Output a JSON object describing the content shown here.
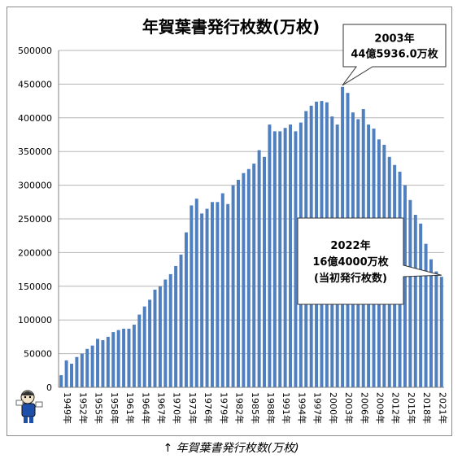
{
  "chart_data": {
    "type": "bar",
    "title": "年賀葉書発行枚数(万枚)",
    "unit": "万枚",
    "ylim": [
      0,
      500000
    ],
    "ytick_step": 50000,
    "grid": true,
    "bar_color": "#4f7fbf",
    "categories": [
      "1949年",
      "1950年",
      "1951年",
      "1952年",
      "1953年",
      "1954年",
      "1955年",
      "1956年",
      "1957年",
      "1958年",
      "1959年",
      "1960年",
      "1961年",
      "1962年",
      "1963年",
      "1964年",
      "1965年",
      "1966年",
      "1967年",
      "1968年",
      "1969年",
      "1970年",
      "1971年",
      "1972年",
      "1973年",
      "1974年",
      "1975年",
      "1976年",
      "1977年",
      "1978年",
      "1979年",
      "1980年",
      "1981年",
      "1982年",
      "1983年",
      "1984年",
      "1985年",
      "1986年",
      "1987年",
      "1988年",
      "1989年",
      "1990年",
      "1991年",
      "1992年",
      "1993年",
      "1994年",
      "1995年",
      "1996年",
      "1997年",
      "1998年",
      "1999年",
      "2000年",
      "2001年",
      "2002年",
      "2003年",
      "2004年",
      "2005年",
      "2006年",
      "2007年",
      "2008年",
      "2009年",
      "2010年",
      "2011年",
      "2012年",
      "2013年",
      "2014年",
      "2015年",
      "2016年",
      "2017年",
      "2018年",
      "2019年",
      "2020年",
      "2021年",
      "2022年"
    ],
    "visible_tick_labels": [
      "1949年",
      "1952年",
      "1955年",
      "1958年",
      "1961年",
      "1964年",
      "1967年",
      "1970年",
      "1973年",
      "1976年",
      "1979年",
      "1982年",
      "1985年",
      "1988年",
      "1991年",
      "1994年",
      "1997年",
      "2000年",
      "2003年",
      "2006年",
      "2009年",
      "2012年",
      "2015年",
      "2018年",
      "2021年"
    ],
    "values": [
      18000,
      40000,
      35000,
      45000,
      50000,
      57000,
      62000,
      72000,
      70000,
      75000,
      82000,
      85000,
      87000,
      87000,
      93000,
      108000,
      120000,
      130000,
      145000,
      150000,
      160000,
      168000,
      180000,
      197000,
      230000,
      270000,
      280000,
      258000,
      265000,
      275000,
      275000,
      288000,
      272000,
      300000,
      308000,
      318000,
      324000,
      332000,
      352000,
      342000,
      390000,
      380000,
      380000,
      385000,
      390000,
      380000,
      393000,
      410000,
      418000,
      424000,
      425000,
      423000,
      402000,
      390000,
      445936,
      437000,
      408000,
      398000,
      413000,
      390000,
      384000,
      368000,
      360000,
      342000,
      330000,
      320000,
      300000,
      278000,
      256000,
      243000,
      213000,
      190000,
      172000,
      164000
    ],
    "annotations": [
      {
        "lines": [
          "2003年",
          "44億5936.0万枚"
        ],
        "category": "2003年"
      },
      {
        "lines": [
          "2022年",
          "16億4000万枚",
          "(当初発行枚数)"
        ],
        "category": "2022年"
      }
    ]
  },
  "caption": "↑ 年賀葉書発行枚数(万枚)"
}
